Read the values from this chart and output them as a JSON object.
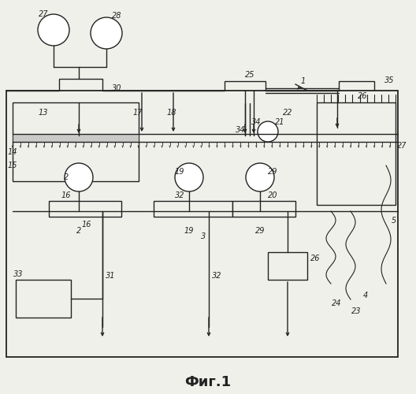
{
  "bg_color": "#f0f0eb",
  "line_color": "#222222",
  "title": "Фиг.1",
  "lw": 1.0,
  "lw_thick": 1.3
}
